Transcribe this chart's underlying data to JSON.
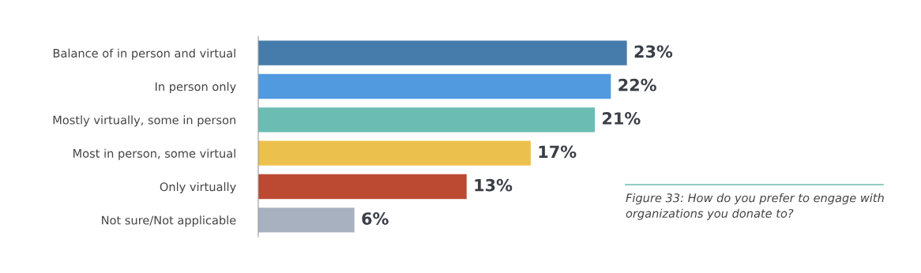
{
  "chart_data": {
    "type": "bar",
    "orientation": "horizontal",
    "categories": [
      "Balance of in person and virtual",
      "In person only",
      "Mostly virtually, some in person",
      "Most in person, some virtual",
      "Only virtually",
      "Not sure/Not applicable"
    ],
    "values": [
      23,
      22,
      21,
      17,
      13,
      6
    ],
    "colors": [
      "#457cab",
      "#529ae0",
      "#6bbdb3",
      "#ecc04c",
      "#bc4a33",
      "#a8b1c0"
    ],
    "value_labels": [
      "23%",
      "22%",
      "21%",
      "17%",
      "13%",
      "6%"
    ],
    "annotations": [
      "Figure 33: How do you prefer to engage with organizations you donate to?"
    ],
    "grid": false,
    "legend": false,
    "tick_labels": "y"
  }
}
